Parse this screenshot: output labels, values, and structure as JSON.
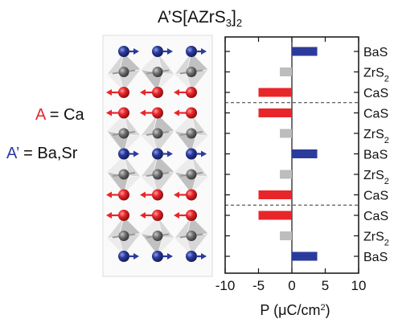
{
  "title": {
    "main": "A’S[AZrS",
    "sub1": "3",
    "mid": "]",
    "sub2": "2"
  },
  "legend_a": {
    "letter": "A",
    "text": " = Ca"
  },
  "legend_ap": {
    "letter": "A’",
    "text": " = Ba,Sr"
  },
  "colors": {
    "a_site": "#e8262a",
    "ap_site": "#2b3b9c",
    "zr": "#bdbdbd",
    "zr_atom": "#707070"
  },
  "chart_data": {
    "type": "bar",
    "orientation": "horizontal",
    "xlabel": "P (μC/cm²)",
    "xlabel_parts": {
      "pre": "P (",
      "mu": "μ",
      "unit": "C/cm",
      "sup": "2",
      "post": ")"
    },
    "xlim": [
      -10,
      10
    ],
    "xticks": [
      -10,
      -5,
      0,
      5,
      10
    ],
    "xtick_labels": [
      "-10",
      "-5",
      "0",
      "5",
      "10"
    ],
    "separators_after_layer": [
      2,
      7
    ],
    "layers": [
      {
        "label": "BaS",
        "sub": "",
        "value": 3.8,
        "site": "ap_site"
      },
      {
        "label": "ZrS",
        "sub": "2",
        "value": -1.8,
        "site": "zr"
      },
      {
        "label": "CaS",
        "sub": "",
        "value": -5.0,
        "site": "a_site"
      },
      {
        "label": "CaS",
        "sub": "",
        "value": -5.0,
        "site": "a_site"
      },
      {
        "label": "ZrS",
        "sub": "2",
        "value": -1.8,
        "site": "zr"
      },
      {
        "label": "BaS",
        "sub": "",
        "value": 3.8,
        "site": "ap_site"
      },
      {
        "label": "ZrS",
        "sub": "2",
        "value": -1.8,
        "site": "zr"
      },
      {
        "label": "CaS",
        "sub": "",
        "value": -5.0,
        "site": "a_site"
      },
      {
        "label": "CaS",
        "sub": "",
        "value": -5.0,
        "site": "a_site"
      },
      {
        "label": "ZrS",
        "sub": "2",
        "value": -1.8,
        "site": "zr"
      },
      {
        "label": "BaS",
        "sub": "",
        "value": 3.8,
        "site": "ap_site"
      }
    ]
  }
}
